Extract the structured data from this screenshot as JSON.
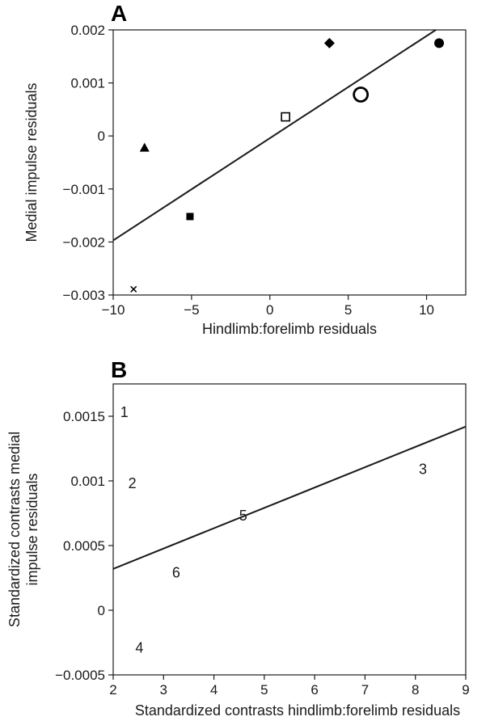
{
  "chart_data": [
    {
      "type": "scatter",
      "panel": "A",
      "xlabel": "Hindlimb:forelimb residuals",
      "ylabel": "Medial impulse residuals",
      "xlim": [
        -10,
        12.5
      ],
      "ylim": [
        -0.003,
        0.002
      ],
      "xticks": [
        -10,
        -5,
        0,
        5,
        10
      ],
      "xtick_labels": [
        "−10",
        "−5",
        "0",
        "5",
        "10"
      ],
      "yticks": [
        -0.003,
        -0.002,
        -0.001,
        0,
        0.001,
        0.002
      ],
      "ytick_labels": [
        "−0.003",
        "−0.002",
        "−0.001",
        "0",
        "0.001",
        "0.002"
      ],
      "points": [
        {
          "x": -8.7,
          "y": -0.00289,
          "marker": "cross"
        },
        {
          "x": -8.0,
          "y": -0.00022,
          "marker": "triangle"
        },
        {
          "x": -5.1,
          "y": -0.00152,
          "marker": "filled-square"
        },
        {
          "x": 1.0,
          "y": 0.00036,
          "marker": "open-square"
        },
        {
          "x": 3.8,
          "y": 0.00175,
          "marker": "diamond"
        },
        {
          "x": 5.8,
          "y": 0.00078,
          "marker": "open-circle-large"
        },
        {
          "x": 10.8,
          "y": 0.00175,
          "marker": "filled-circle"
        }
      ],
      "fit_line": {
        "x": [
          -10,
          10.8
        ],
        "y": [
          -0.00197,
          0.00204
        ]
      },
      "grid": false
    },
    {
      "type": "scatter",
      "panel": "B",
      "xlabel": "Standardized contrasts hindlimb:forelimb residuals",
      "ylabel_lines": [
        "Standardized contrasts medial",
        "impulse residuals"
      ],
      "xlim": [
        2,
        9
      ],
      "ylim": [
        -0.0005,
        0.00175
      ],
      "xticks": [
        2,
        3,
        4,
        5,
        6,
        7,
        8,
        9
      ],
      "xtick_labels": [
        "2",
        "3",
        "4",
        "5",
        "6",
        "7",
        "8",
        "9"
      ],
      "yticks": [
        -0.0005,
        0,
        0.0005,
        0.001,
        0.0015
      ],
      "ytick_labels": [
        "−0.0005",
        "0",
        "0.0005",
        "0.001",
        "0.0015"
      ],
      "points": [
        {
          "x": 2.22,
          "y": 0.00153,
          "label": "1"
        },
        {
          "x": 2.38,
          "y": 0.00098,
          "label": "2"
        },
        {
          "x": 8.15,
          "y": 0.00109,
          "label": "3"
        },
        {
          "x": 2.52,
          "y": -0.00029,
          "label": "4"
        },
        {
          "x": 4.58,
          "y": 0.00073,
          "label": "5"
        },
        {
          "x": 3.25,
          "y": 0.00029,
          "label": "6"
        }
      ],
      "fit_line": {
        "x": [
          2,
          9
        ],
        "y": [
          0.00032,
          0.00142
        ]
      },
      "grid": false
    }
  ]
}
